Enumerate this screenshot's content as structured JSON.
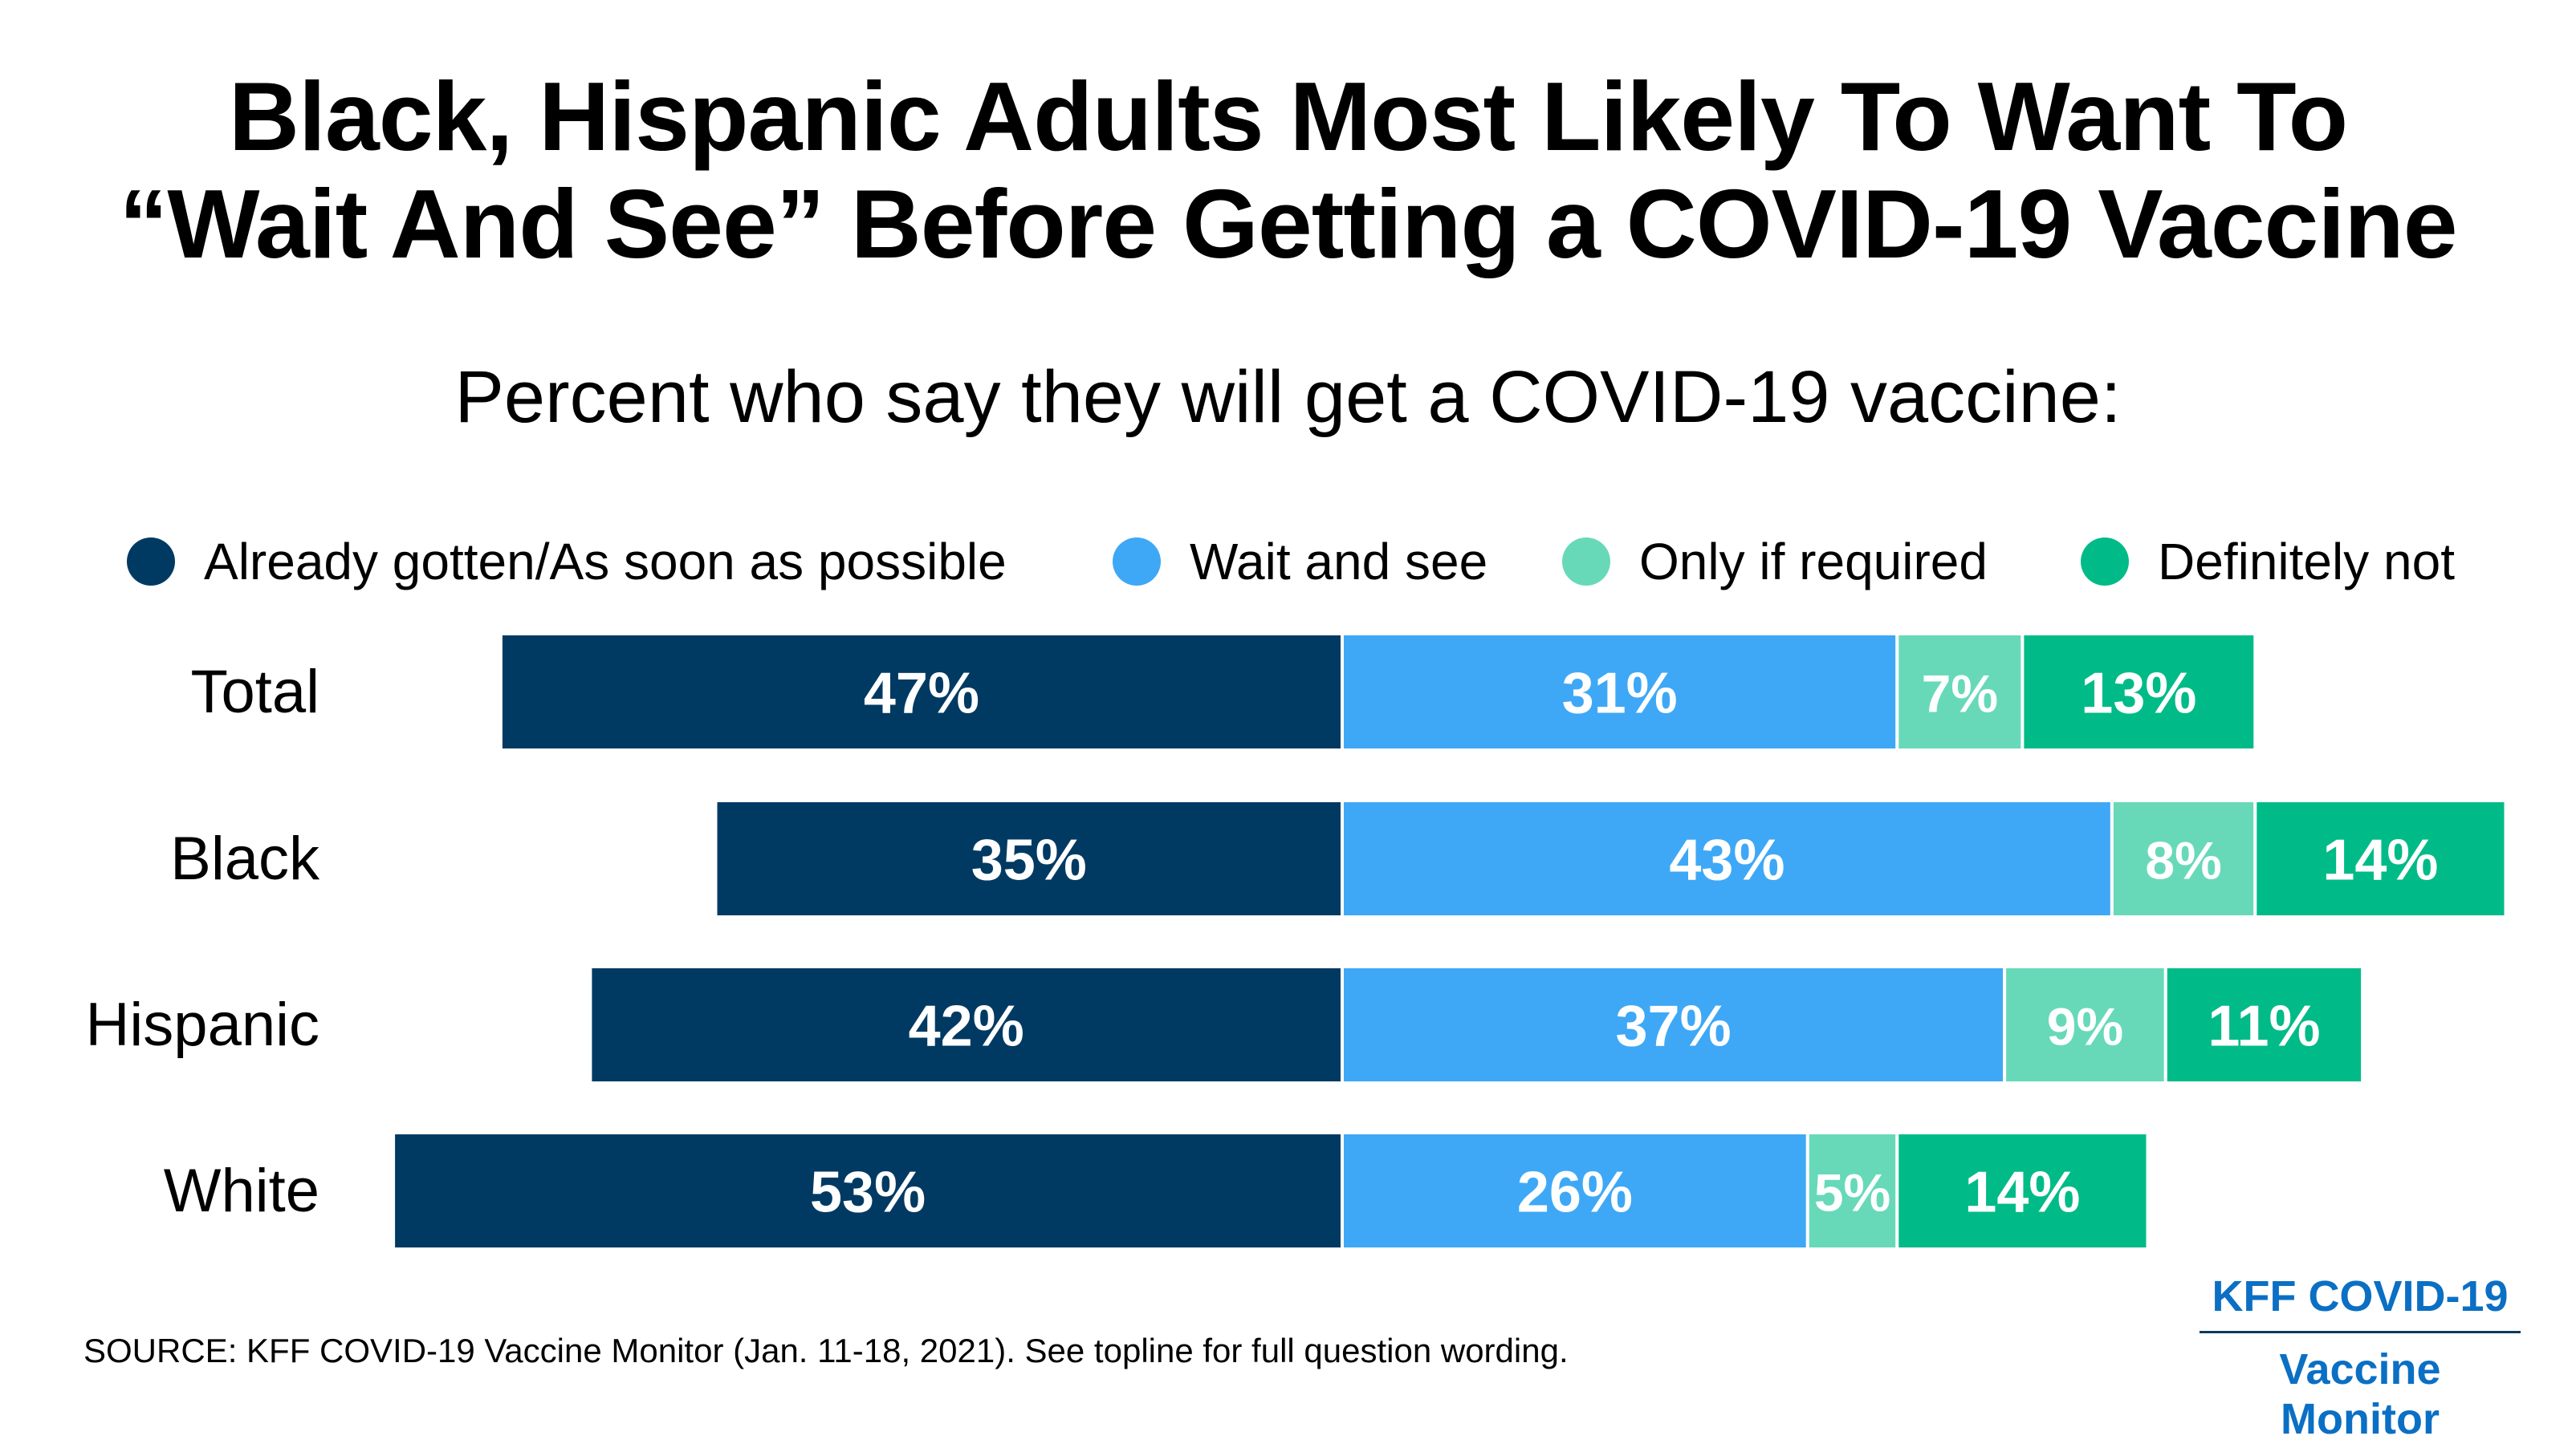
{
  "title_line1": "Black, Hispanic Adults Most Likely To Want To",
  "title_line2": "“Wait And See” Before Getting a COVID-19 Vaccine",
  "subtitle": "Percent who say they will get a COVID-19 vaccine:",
  "source": "SOURCE: KFF COVID-19 Vaccine Monitor (Jan. 11-18, 2021). See topline for full question wording.",
  "brand_line1": "KFF COVID-19",
  "brand_line2": "Vaccine Monitor",
  "chart_data": {
    "type": "bar",
    "orientation": "horizontal",
    "stacked": "diverging",
    "categories": [
      "Total",
      "Black",
      "Hispanic",
      "White"
    ],
    "series": [
      {
        "name": "Already gotten/As soon as possible",
        "color": "#003a63",
        "values": [
          47,
          35,
          42,
          53
        ]
      },
      {
        "name": "Wait and see",
        "color": "#3ea8f6",
        "values": [
          31,
          43,
          37,
          26
        ]
      },
      {
        "name": "Only if required",
        "color": "#67d9b9",
        "values": [
          7,
          8,
          9,
          5
        ]
      },
      {
        "name": "Definitely not",
        "color": "#00bb87",
        "values": [
          13,
          14,
          11,
          14
        ]
      }
    ],
    "value_suffix": "%",
    "legend_position": "top",
    "grid": false
  }
}
